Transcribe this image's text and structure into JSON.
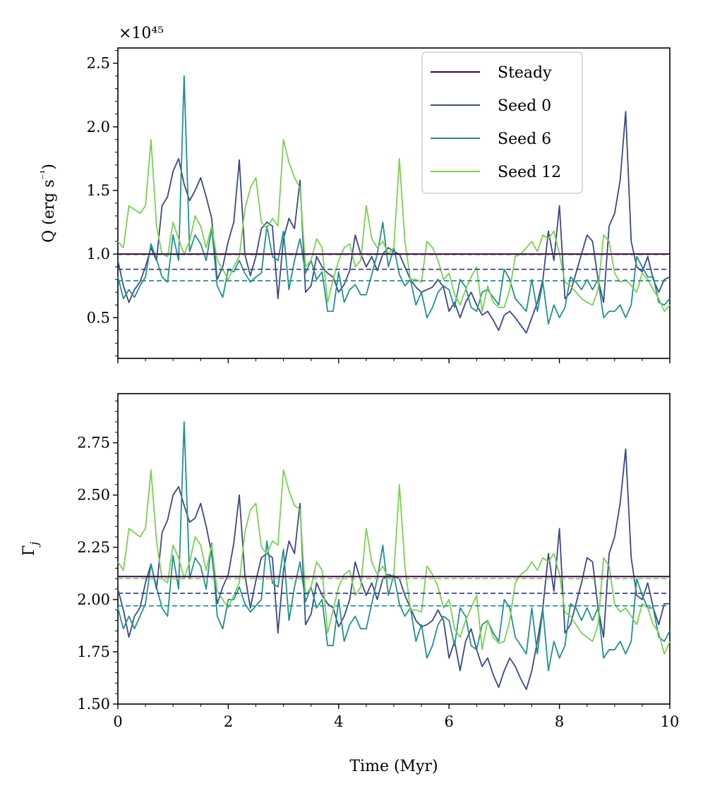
{
  "chart_data": {
    "type": "line",
    "x_label": "Time (Myr)",
    "x_range": [
      0,
      10
    ],
    "x_ticks": [
      0,
      2,
      4,
      6,
      8,
      10
    ],
    "x_tick_labels": [
      "0",
      "2",
      "4",
      "6",
      "8",
      "10"
    ],
    "x": [
      0,
      0.1,
      0.2,
      0.3,
      0.4,
      0.5,
      0.6,
      0.7,
      0.8,
      0.9,
      1,
      1.1,
      1.2,
      1.3,
      1.4,
      1.5,
      1.6,
      1.7,
      1.8,
      1.9,
      2,
      2.1,
      2.2,
      2.3,
      2.4,
      2.5,
      2.6,
      2.7,
      2.8,
      2.9,
      3,
      3.1,
      3.2,
      3.3,
      3.4,
      3.5,
      3.6,
      3.7,
      3.8,
      3.9,
      4,
      4.1,
      4.2,
      4.3,
      4.4,
      4.5,
      4.6,
      4.7,
      4.8,
      4.9,
      5,
      5.1,
      5.2,
      5.3,
      5.4,
      5.5,
      5.6,
      5.7,
      5.8,
      5.9,
      6,
      6.1,
      6.2,
      6.3,
      6.4,
      6.5,
      6.6,
      6.7,
      6.8,
      6.9,
      7,
      7.1,
      7.2,
      7.3,
      7.4,
      7.5,
      7.6,
      7.7,
      7.8,
      7.9,
      8,
      8.1,
      8.2,
      8.3,
      8.4,
      8.5,
      8.6,
      8.7,
      8.8,
      8.9,
      9,
      9.1,
      9.2,
      9.3,
      9.4,
      9.5,
      9.6,
      9.7,
      9.8,
      9.9,
      10
    ],
    "legend": {
      "placement": "top-right",
      "entries": [
        {
          "label": "Steady",
          "color": "#440154"
        },
        {
          "label": "Seed 0",
          "color": "#3b4889"
        },
        {
          "label": "Seed 6",
          "color": "#21918c"
        },
        {
          "label": "Seed 12",
          "color": "#7ad151"
        }
      ]
    },
    "panels": [
      {
        "name": "Q",
        "y_label": "Q (erg s⁻¹)",
        "y_exponent": "×10⁴⁵",
        "y_range": [
          0.18,
          2.62
        ],
        "y_ticks": [
          0.5,
          1.0,
          1.5,
          2.0,
          2.5
        ],
        "y_tick_labels": [
          "0.5",
          "1.0",
          "1.5",
          "2.0",
          "2.5"
        ],
        "y_minor_step": 0.1,
        "steady": 1.0,
        "means": {
          "Seed 0": 0.88,
          "Seed 6": 0.79,
          "Seed 12": 0.995
        },
        "series": [
          {
            "name": "Seed 0",
            "values": [
              0.95,
              0.75,
              0.62,
              0.72,
              0.78,
              0.9,
              1.05,
              0.95,
              1.38,
              1.45,
              1.65,
              1.75,
              1.55,
              1.42,
              1.5,
              1.6,
              1.45,
              1.28,
              0.8,
              0.9,
              1.1,
              1.25,
              1.74,
              1.0,
              0.83,
              0.98,
              1.2,
              1.25,
              1.22,
              0.65,
              1.12,
              1.28,
              1.2,
              1.58,
              0.7,
              0.75,
              0.98,
              0.9,
              0.85,
              0.82,
              0.7,
              0.76,
              0.87,
              1.15,
              1.0,
              0.9,
              0.98,
              0.87,
              1.0,
              1.05,
              1.02,
              1.0,
              0.9,
              0.8,
              0.74,
              0.7,
              0.72,
              0.74,
              0.8,
              0.74,
              0.55,
              0.62,
              0.5,
              0.62,
              0.7,
              0.6,
              0.52,
              0.55,
              0.48,
              0.4,
              0.52,
              0.55,
              0.5,
              0.44,
              0.38,
              0.5,
              0.62,
              0.8,
              1.18,
              0.95,
              1.38,
              0.65,
              0.7,
              0.85,
              1.0,
              1.15,
              1.1,
              0.8,
              0.62,
              1.22,
              1.32,
              1.58,
              2.12,
              1.1,
              0.9,
              0.86,
              0.98,
              0.8,
              0.7,
              0.8,
              0.82
            ]
          },
          {
            "name": "Seed 6",
            "values": [
              0.82,
              0.65,
              0.72,
              0.66,
              0.75,
              0.82,
              1.08,
              0.96,
              0.82,
              0.78,
              1.15,
              0.95,
              2.4,
              1.02,
              1.15,
              1.08,
              0.95,
              1.2,
              0.75,
              0.66,
              0.88,
              0.86,
              0.95,
              0.85,
              0.78,
              0.82,
              0.85,
              1.22,
              0.98,
              0.95,
              1.18,
              0.72,
              0.95,
              1.12,
              0.85,
              0.95,
              0.8,
              0.86,
              0.55,
              0.55,
              0.86,
              0.62,
              0.72,
              0.76,
              0.68,
              0.68,
              0.84,
              1.0,
              1.25,
              0.9,
              1.05,
              0.84,
              0.75,
              0.8,
              0.6,
              0.7,
              0.5,
              0.58,
              0.7,
              0.75,
              0.72,
              0.58,
              0.8,
              0.74,
              0.58,
              0.55,
              0.7,
              0.72,
              0.66,
              0.6,
              0.88,
              0.8,
              0.65,
              0.6,
              0.55,
              0.8,
              0.55,
              0.78,
              0.45,
              0.6,
              0.5,
              0.58,
              0.82,
              0.78,
              0.72,
              0.8,
              0.72,
              0.8,
              0.5,
              0.55,
              0.55,
              0.6,
              0.5,
              0.6,
              0.98,
              0.9,
              0.82,
              0.82,
              0.62,
              0.6,
              0.65
            ]
          },
          {
            "name": "Seed 12",
            "values": [
              1.1,
              1.05,
              1.38,
              1.35,
              1.32,
              1.38,
              1.9,
              1.22,
              1.0,
              0.98,
              1.25,
              1.12,
              1.0,
              1.1,
              1.3,
              1.22,
              1.05,
              1.22,
              0.95,
              0.88,
              0.8,
              0.9,
              0.98,
              1.35,
              1.52,
              1.6,
              1.25,
              1.2,
              1.28,
              1.22,
              1.9,
              1.72,
              1.6,
              1.52,
              0.9,
              0.95,
              1.12,
              1.05,
              0.62,
              0.8,
              0.95,
              1.05,
              1.08,
              0.9,
              0.95,
              1.38,
              1.12,
              1.05,
              1.1,
              1.0,
              1.05,
              1.75,
              1.1,
              0.8,
              0.8,
              0.78,
              1.1,
              1.05,
              0.95,
              0.8,
              0.85,
              0.68,
              0.6,
              0.72,
              0.82,
              0.9,
              0.55,
              0.75,
              0.62,
              0.58,
              0.58,
              0.72,
              0.98,
              1.0,
              1.05,
              1.1,
              1.02,
              1.15,
              1.12,
              1.18,
              1.0,
              0.78,
              0.75,
              0.7,
              0.65,
              0.62,
              0.6,
              0.72,
              1.15,
              1.1,
              0.85,
              0.78,
              0.8,
              0.75,
              0.7,
              0.85,
              0.8,
              0.72,
              0.65,
              0.55,
              0.6
            ]
          }
        ]
      },
      {
        "name": "Gamma",
        "y_label": "Γ",
        "y_label_sub": "j",
        "y_range": [
          1.5,
          2.985
        ],
        "y_ticks": [
          1.5,
          1.75,
          2.0,
          2.25,
          2.5,
          2.75
        ],
        "y_tick_labels": [
          "1.50",
          "1.75",
          "2.00",
          "2.25",
          "2.50",
          "2.75"
        ],
        "y_minor_step": 0.05,
        "steady": 2.11,
        "means": {
          "Seed 0": 2.03,
          "Seed 6": 1.97,
          "Seed 12": 2.1
        },
        "series": [
          {
            "name": "Seed 0",
            "values": [
              2.05,
              1.95,
              1.82,
              1.92,
              1.96,
              2.08,
              2.17,
              2.05,
              2.32,
              2.38,
              2.5,
              2.54,
              2.45,
              2.37,
              2.39,
              2.46,
              2.35,
              2.22,
              1.98,
              2.06,
              2.12,
              2.27,
              2.5,
              2.12,
              1.96,
              2.09,
              2.2,
              2.22,
              2.2,
              1.84,
              2.14,
              2.28,
              2.22,
              2.46,
              1.88,
              1.93,
              2.08,
              2.02,
              1.98,
              1.96,
              1.87,
              1.92,
              2.0,
              2.18,
              2.09,
              2.02,
              2.08,
              2.0,
              2.1,
              2.12,
              2.11,
              2.1,
              2.02,
              1.96,
              1.9,
              1.87,
              1.88,
              1.9,
              1.95,
              1.9,
              1.72,
              1.8,
              1.66,
              1.8,
              1.86,
              1.76,
              1.68,
              1.72,
              1.64,
              1.58,
              1.66,
              1.72,
              1.68,
              1.62,
              1.57,
              1.66,
              1.8,
              1.96,
              2.22,
              2.04,
              2.34,
              1.84,
              1.88,
              1.98,
              2.08,
              2.2,
              2.18,
              1.96,
              1.82,
              2.22,
              2.3,
              2.46,
              2.72,
              2.2,
              2.02,
              2.0,
              2.08,
              1.96,
              1.88,
              1.98,
              1.98
            ]
          },
          {
            "name": "Seed 6",
            "values": [
              1.96,
              1.86,
              1.92,
              1.86,
              1.92,
              1.98,
              2.17,
              2.06,
              1.96,
              1.92,
              2.21,
              2.05,
              2.85,
              2.1,
              2.2,
              2.16,
              2.05,
              2.27,
              1.92,
              1.86,
              2.0,
              2.0,
              2.06,
              1.98,
              1.94,
              1.97,
              2.0,
              2.28,
              2.08,
              2.06,
              2.24,
              1.9,
              2.06,
              2.18,
              1.99,
              2.06,
              1.96,
              2.0,
              1.78,
              1.78,
              2.0,
              1.8,
              1.88,
              1.92,
              1.86,
              1.86,
              1.98,
              2.1,
              2.26,
              2.02,
              2.12,
              1.98,
              1.92,
              1.96,
              1.8,
              1.88,
              1.72,
              1.78,
              1.88,
              1.92,
              1.9,
              1.78,
              1.96,
              1.92,
              1.78,
              1.76,
              1.88,
              1.9,
              1.84,
              1.8,
              2.0,
              1.96,
              1.82,
              1.78,
              1.74,
              1.96,
              1.74,
              1.95,
              1.66,
              1.8,
              1.72,
              1.78,
              1.98,
              1.96,
              1.9,
              1.96,
              1.9,
              1.96,
              1.72,
              1.76,
              1.76,
              1.8,
              1.74,
              1.8,
              2.1,
              2.02,
              1.96,
              1.96,
              1.82,
              1.8,
              1.85
            ]
          },
          {
            "name": "Seed 12",
            "values": [
              2.18,
              2.14,
              2.34,
              2.32,
              2.3,
              2.34,
              2.62,
              2.28,
              2.1,
              2.08,
              2.26,
              2.2,
              2.1,
              2.18,
              2.3,
              2.26,
              2.14,
              2.26,
              2.04,
              2.0,
              1.96,
              2.02,
              2.08,
              2.32,
              2.43,
              2.46,
              2.25,
              2.22,
              2.28,
              2.26,
              2.62,
              2.52,
              2.45,
              2.43,
              2.02,
              2.06,
              2.18,
              2.14,
              1.84,
              1.95,
              2.06,
              2.12,
              2.14,
              2.02,
              2.06,
              2.34,
              2.18,
              2.12,
              2.16,
              2.1,
              2.12,
              2.55,
              2.16,
              1.95,
              1.95,
              1.94,
              2.16,
              2.12,
              2.06,
              1.96,
              2.0,
              1.86,
              1.82,
              1.9,
              1.96,
              2.02,
              1.76,
              1.9,
              1.82,
              1.79,
              1.8,
              1.9,
              2.08,
              2.12,
              2.14,
              2.18,
              2.14,
              2.2,
              2.18,
              2.22,
              2.12,
              1.94,
              1.92,
              1.88,
              1.84,
              1.82,
              1.8,
              1.88,
              2.2,
              2.16,
              1.98,
              1.94,
              1.96,
              1.92,
              1.88,
              1.98,
              1.96,
              1.88,
              1.84,
              1.74,
              1.8
            ]
          }
        ]
      }
    ]
  }
}
